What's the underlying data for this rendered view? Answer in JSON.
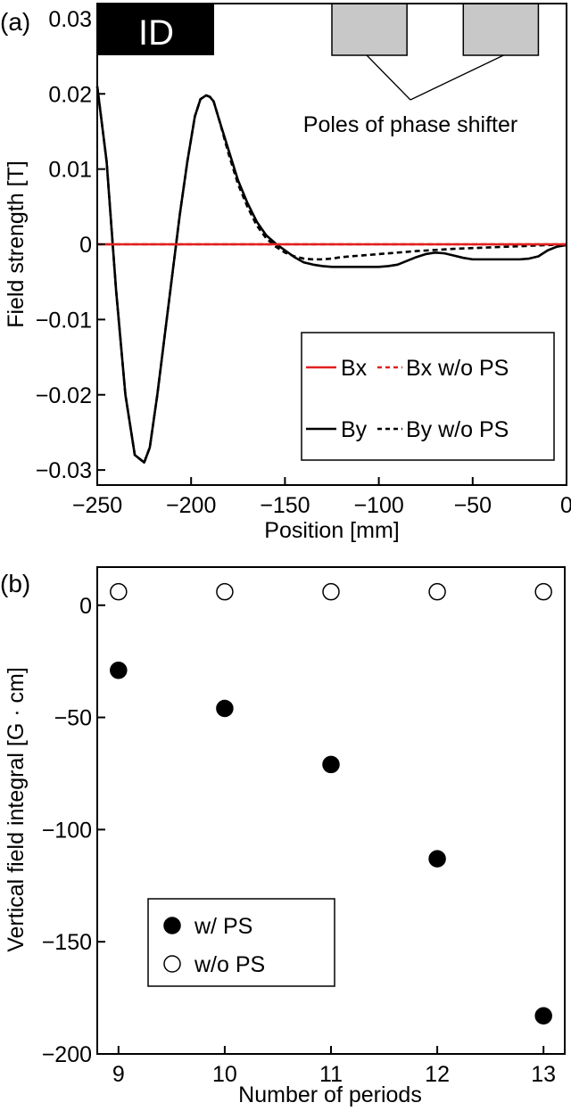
{
  "chart_data": [
    {
      "panel_label": "(a)",
      "type": "line",
      "xlabel": "Position [mm]",
      "ylabel": "Field strength [T]",
      "xlim": [
        -250,
        0
      ],
      "ylim": [
        -0.032,
        0.032
      ],
      "x_ticks": [
        -250,
        -200,
        -150,
        -100,
        -50,
        0
      ],
      "x_tick_labels": [
        "−250",
        "−200",
        "−150",
        "−100",
        "−50",
        "0"
      ],
      "y_ticks": [
        0.03,
        0.02,
        0.01,
        0,
        -0.01,
        -0.02,
        -0.03
      ],
      "y_tick_labels": [
        "0.03",
        "0.02",
        "0.01",
        "0",
        "−0.01",
        "−0.02",
        "−0.03"
      ],
      "grid": false,
      "legend_position": "bottom-right",
      "annotations": {
        "id_label": "ID",
        "poles_label": "Poles of phase shifter",
        "pole_blocks_mm": [
          [
            -125,
            -85
          ],
          [
            -55,
            -15
          ]
        ]
      },
      "series": [
        {
          "name": "Bx",
          "color": "#e02020",
          "dash": "solid",
          "x": [
            -250,
            0
          ],
          "y": [
            0,
            0
          ]
        },
        {
          "name": "Bx w/o PS",
          "color": "#e02020",
          "dash": "dashed",
          "x": [
            -250,
            0
          ],
          "y": [
            0,
            0
          ]
        },
        {
          "name": "By",
          "color": "#000000",
          "dash": "solid",
          "x": [
            -250,
            -245,
            -240,
            -235,
            -230,
            -225,
            -222,
            -218,
            -214,
            -210,
            -206,
            -202,
            -198,
            -195,
            -192,
            -190,
            -188,
            -185,
            -180,
            -175,
            -170,
            -165,
            -160,
            -155,
            -150,
            -145,
            -140,
            -135,
            -130,
            -125,
            -120,
            -110,
            -100,
            -95,
            -90,
            -85,
            -80,
            -75,
            -70,
            -65,
            -60,
            -55,
            -50,
            -45,
            -40,
            -35,
            -30,
            -25,
            -20,
            -15,
            -10,
            -5,
            0
          ],
          "y": [
            0.021,
            0.011,
            -0.006,
            -0.02,
            -0.028,
            -0.029,
            -0.027,
            -0.02,
            -0.012,
            -0.004,
            0.004,
            0.011,
            0.017,
            0.0193,
            0.0198,
            0.0196,
            0.019,
            0.0165,
            0.0125,
            0.0085,
            0.0055,
            0.003,
            0.0012,
            0.0001,
            -0.0008,
            -0.0017,
            -0.0024,
            -0.0027,
            -0.0029,
            -0.003,
            -0.003,
            -0.003,
            -0.003,
            -0.0029,
            -0.0027,
            -0.0022,
            -0.0017,
            -0.0013,
            -0.0011,
            -0.0012,
            -0.0015,
            -0.0018,
            -0.002,
            -0.002,
            -0.002,
            -0.002,
            -0.002,
            -0.002,
            -0.0019,
            -0.0016,
            -0.0008,
            -0.0003,
            -0.0001
          ]
        },
        {
          "name": "By w/o PS",
          "color": "#000000",
          "dash": "dashed",
          "x": [
            -250,
            -245,
            -240,
            -235,
            -230,
            -225,
            -222,
            -218,
            -214,
            -210,
            -206,
            -202,
            -198,
            -195,
            -192,
            -190,
            -188,
            -185,
            -180,
            -175,
            -170,
            -165,
            -160,
            -155,
            -150,
            -145,
            -140,
            -135,
            -130,
            -125,
            -120,
            -100,
            -80,
            -60,
            -40,
            -20,
            0
          ],
          "y": [
            0.021,
            0.011,
            -0.006,
            -0.02,
            -0.028,
            -0.029,
            -0.027,
            -0.02,
            -0.012,
            -0.004,
            0.004,
            0.011,
            0.017,
            0.0193,
            0.0198,
            0.0196,
            0.019,
            0.0165,
            0.012,
            0.008,
            0.005,
            0.0025,
            0.0008,
            -0.0003,
            -0.0011,
            -0.0016,
            -0.0019,
            -0.002,
            -0.002,
            -0.0019,
            -0.0017,
            -0.0013,
            -0.0009,
            -0.0006,
            -0.0004,
            -0.0002,
            0
          ]
        }
      ]
    },
    {
      "panel_label": "(b)",
      "type": "scatter",
      "xlabel": "Number of periods",
      "ylabel": "Vertical field integral [G · cm]",
      "xlim": [
        8.8,
        13.2
      ],
      "ylim": [
        -200,
        17
      ],
      "x_ticks": [
        9,
        10,
        11,
        12,
        13
      ],
      "x_tick_labels": [
        "9",
        "10",
        "11",
        "12",
        "13"
      ],
      "y_ticks": [
        0,
        -50,
        -100,
        -150,
        -200
      ],
      "y_tick_labels": [
        "0",
        "−50",
        "−100",
        "−150",
        "−200"
      ],
      "grid": false,
      "legend_position": "bottom-left",
      "series": [
        {
          "name": "w/ PS",
          "marker": "filled-circle",
          "x": [
            9,
            10,
            11,
            12,
            13
          ],
          "y": [
            -29,
            -46,
            -71,
            -113,
            -183
          ]
        },
        {
          "name": "w/o PS",
          "marker": "open-circle",
          "x": [
            9,
            10,
            11,
            12,
            13
          ],
          "y": [
            6,
            6,
            6,
            6,
            6
          ]
        }
      ]
    }
  ]
}
